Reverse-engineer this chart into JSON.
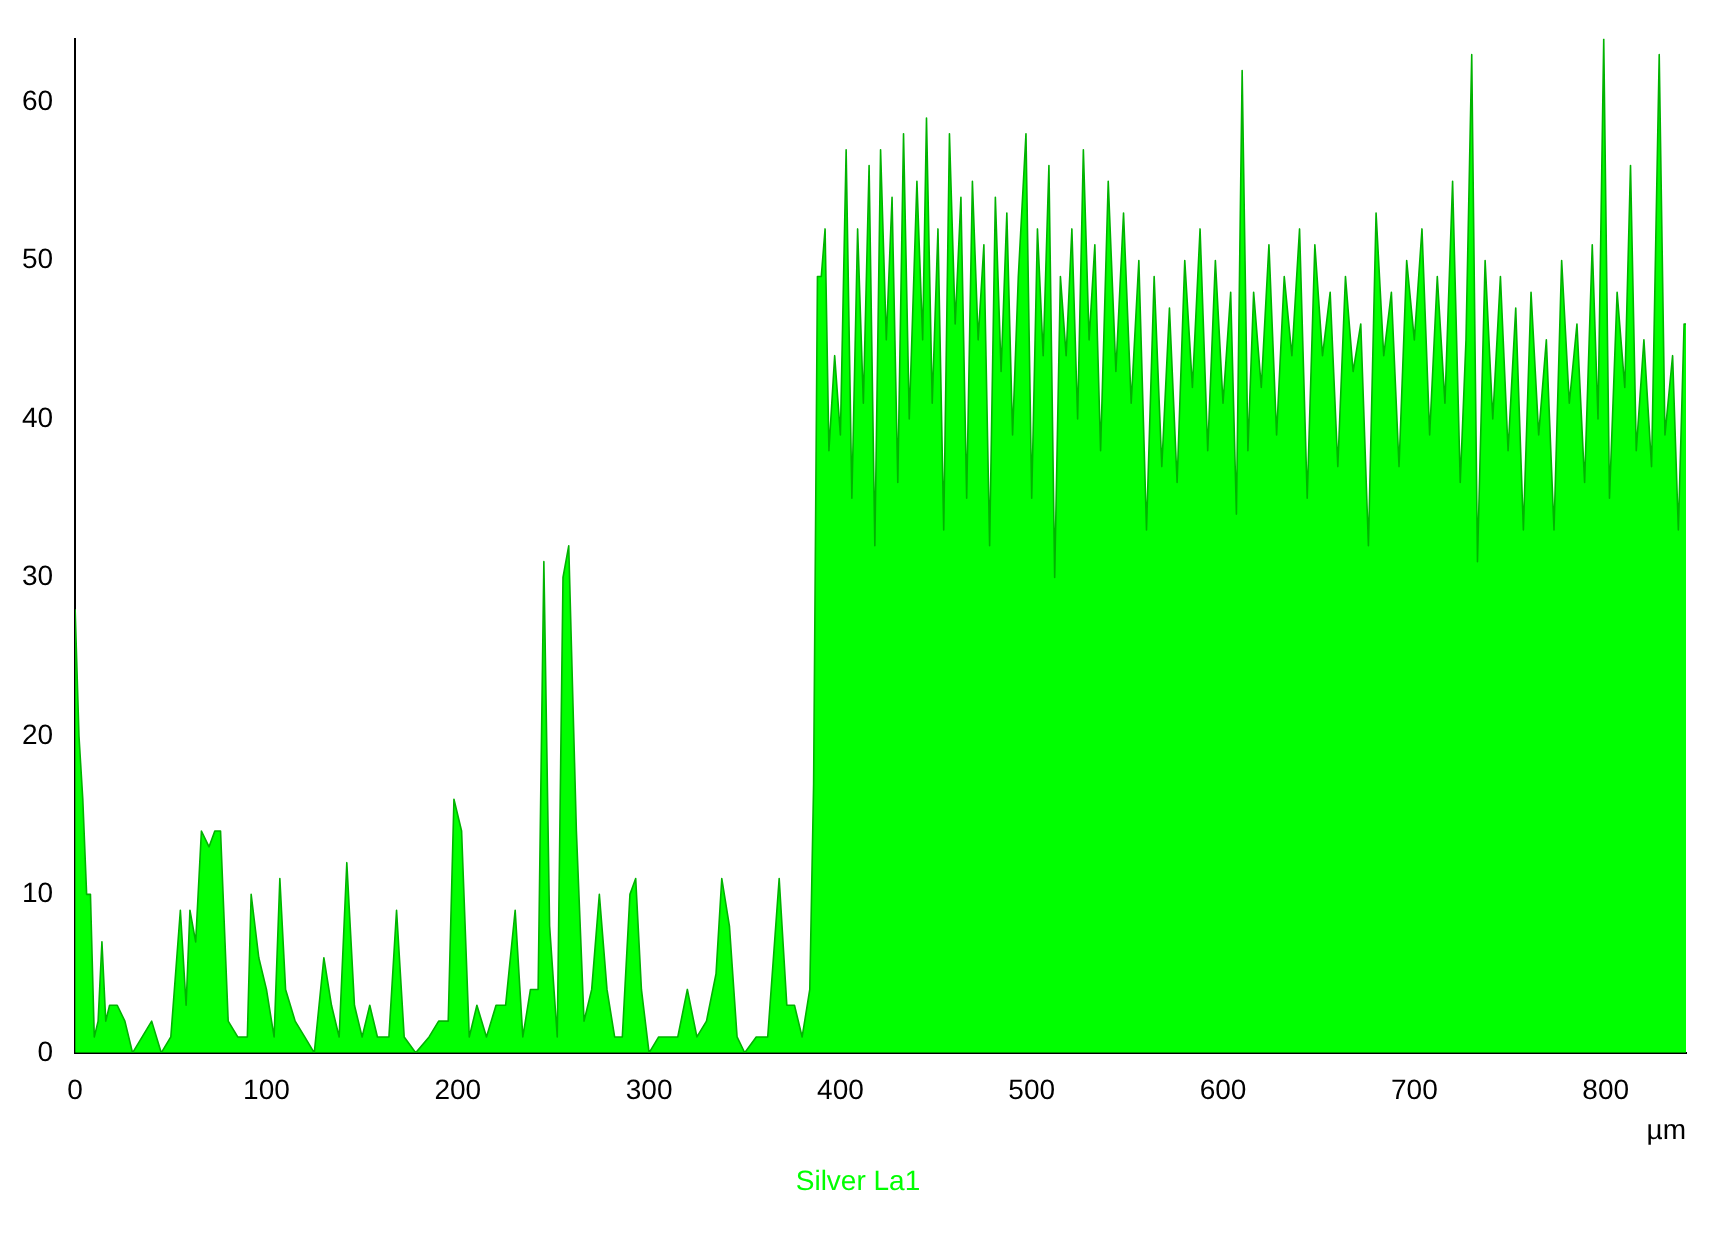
{
  "chart_data": {
    "type": "area",
    "xlabel": "µm",
    "legend": "bottom",
    "xlim": [
      0,
      842
    ],
    "xticks": [
      0,
      100,
      200,
      300,
      400,
      500,
      600,
      700,
      800
    ],
    "ylim": [
      0,
      64
    ],
    "yticks": [
      0,
      10,
      20,
      30,
      40,
      50,
      60
    ],
    "x": [
      0,
      2,
      4,
      6,
      8,
      10,
      12,
      14,
      16,
      18,
      22,
      26,
      30,
      40,
      45,
      50,
      55,
      58,
      60,
      63,
      66,
      70,
      73,
      76,
      80,
      85,
      90,
      92,
      96,
      100,
      104,
      107,
      110,
      115,
      120,
      125,
      130,
      134,
      138,
      142,
      146,
      150,
      154,
      158,
      164,
      168,
      172,
      178,
      185,
      190,
      195,
      198,
      202,
      206,
      210,
      215,
      220,
      225,
      230,
      234,
      238,
      242,
      245,
      248,
      252,
      255,
      258,
      262,
      266,
      270,
      274,
      278,
      282,
      286,
      290,
      293,
      296,
      300,
      305,
      310,
      315,
      320,
      325,
      330,
      335,
      338,
      342,
      346,
      350,
      356,
      362,
      368,
      372,
      376,
      380,
      384,
      386,
      388,
      390,
      392,
      394,
      397,
      400,
      403,
      406,
      409,
      412,
      415,
      418,
      421,
      424,
      427,
      430,
      433,
      436,
      440,
      443,
      445,
      448,
      451,
      454,
      457,
      460,
      463,
      466,
      469,
      472,
      475,
      478,
      481,
      484,
      487,
      490,
      493,
      497,
      500,
      503,
      506,
      509,
      512,
      515,
      518,
      521,
      524,
      527,
      530,
      533,
      536,
      540,
      544,
      548,
      552,
      556,
      560,
      564,
      568,
      572,
      576,
      580,
      584,
      588,
      592,
      596,
      600,
      604,
      607,
      610,
      613,
      616,
      620,
      624,
      628,
      632,
      636,
      640,
      644,
      648,
      652,
      656,
      660,
      664,
      668,
      672,
      676,
      680,
      684,
      688,
      692,
      696,
      700,
      704,
      708,
      712,
      716,
      720,
      724,
      727,
      730,
      733,
      737,
      741,
      745,
      749,
      753,
      757,
      761,
      765,
      769,
      773,
      777,
      781,
      785,
      789,
      793,
      796,
      799,
      802,
      806,
      810,
      813,
      816,
      820,
      824,
      828,
      831,
      835,
      838,
      841,
      842
    ],
    "series": [
      {
        "name": "Silver La1",
        "color": "#00ff00",
        "values": [
          28,
          20,
          16,
          10,
          10,
          1,
          2,
          7,
          2,
          3,
          3,
          2,
          0,
          2,
          0,
          1,
          9,
          3,
          9,
          7,
          14,
          13,
          14,
          14,
          2,
          1,
          1,
          10,
          6,
          4,
          1,
          11,
          4,
          2,
          1,
          0,
          6,
          3,
          1,
          12,
          3,
          1,
          3,
          1,
          1,
          9,
          1,
          0,
          1,
          2,
          2,
          16,
          14,
          1,
          3,
          1,
          3,
          3,
          9,
          1,
          4,
          4,
          31,
          8,
          1,
          30,
          32,
          14,
          2,
          4,
          10,
          4,
          1,
          1,
          10,
          11,
          4,
          0,
          1,
          1,
          1,
          4,
          1,
          2,
          5,
          11,
          8,
          1,
          0,
          1,
          1,
          11,
          3,
          3,
          1,
          4,
          17,
          49,
          49,
          52,
          38,
          44,
          39,
          57,
          35,
          52,
          41,
          56,
          32,
          57,
          45,
          54,
          36,
          58,
          40,
          55,
          45,
          59,
          41,
          52,
          33,
          58,
          46,
          54,
          35,
          55,
          45,
          51,
          32,
          54,
          43,
          53,
          39,
          49,
          58,
          35,
          52,
          44,
          56,
          30,
          49,
          44,
          52,
          40,
          57,
          45,
          51,
          38,
          55,
          43,
          53,
          41,
          50,
          33,
          49,
          37,
          47,
          36,
          50,
          42,
          52,
          38,
          50,
          41,
          48,
          34,
          62,
          38,
          48,
          42,
          51,
          39,
          49,
          44,
          52,
          35,
          51,
          44,
          48,
          37,
          49,
          43,
          46,
          32,
          53,
          44,
          48,
          37,
          50,
          45,
          52,
          39,
          49,
          41,
          55,
          36,
          45,
          63,
          31,
          50,
          40,
          49,
          38,
          47,
          33,
          48,
          39,
          45,
          33,
          50,
          41,
          46,
          36,
          51,
          40,
          64,
          35,
          48,
          42,
          56,
          38,
          45,
          37,
          63,
          39,
          44,
          33,
          46,
          46
        ]
      }
    ]
  }
}
